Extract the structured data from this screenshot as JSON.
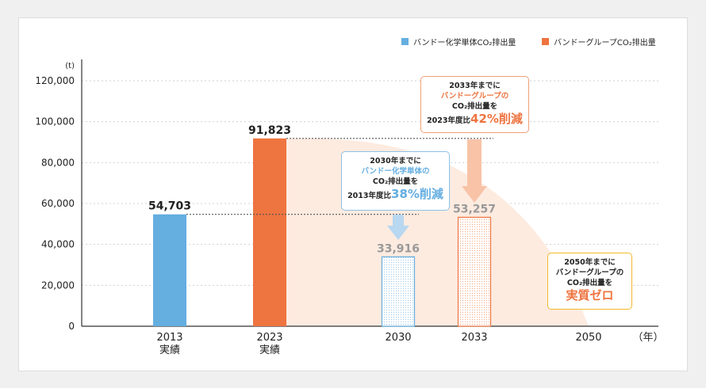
{
  "legend": {
    "items": [
      {
        "label": "バンドー化学単体CO₂排出量",
        "color": "#64aee0"
      },
      {
        "label": "バンドーグループCO₂排出量",
        "color": "#ee7440"
      }
    ]
  },
  "chart_data": {
    "type": "bar",
    "unit_label": "(t)",
    "x_unit_label": "（年）",
    "ylim": [
      0,
      120000
    ],
    "y_ticks": [
      "120,000",
      "100,000",
      "80,000",
      "60,000",
      "40,000",
      "20,000",
      "0"
    ],
    "categories": [
      {
        "year": 2013,
        "label_line1": "2013",
        "label_line2": "実績"
      },
      {
        "year": 2023,
        "label_line1": "2023",
        "label_line2": "実績"
      },
      {
        "year": 2030,
        "label_line1": "2030",
        "label_line2": ""
      },
      {
        "year": 2033,
        "label_line1": "2033",
        "label_line2": ""
      },
      {
        "year": 2050,
        "label_line1": "2050",
        "label_line2": ""
      }
    ],
    "bars": [
      {
        "year": 2013,
        "value": 54703,
        "label": "54,703",
        "series": "単体",
        "style": "solid"
      },
      {
        "year": 2023,
        "value": 91823,
        "label": "91,823",
        "series": "グループ",
        "style": "solid"
      },
      {
        "year": 2030,
        "value": 33916,
        "label": "33,916",
        "series": "単体",
        "style": "target"
      },
      {
        "year": 2033,
        "value": 53257,
        "label": "53,257",
        "series": "グループ",
        "style": "target"
      }
    ],
    "trajectory": {
      "from_year": 2023,
      "from_value": 91823,
      "to_year": 2050,
      "to_value": 0
    },
    "colors": {
      "blue": "#64aee0",
      "orange": "#ee7440",
      "area": "#fdebe0",
      "target_label": "#999999"
    }
  },
  "callouts": {
    "target_2030": {
      "line1": "2030年までに",
      "line2": "バンドー化学単体の",
      "line3": "CO₂排出量を",
      "line4_prefix": "2013年度比",
      "line4_big": "38%削減"
    },
    "target_2033": {
      "line1": "2033年までに",
      "line2": "バンドーグループの",
      "line3": "CO₂排出量を",
      "line4_prefix": "2023年度比",
      "line4_big": "42%削減"
    },
    "target_2050": {
      "line1": "2050年までに",
      "line2": "バンドーグループの",
      "line3": "CO₂排出量を",
      "line4_big": "実質ゼロ"
    }
  }
}
